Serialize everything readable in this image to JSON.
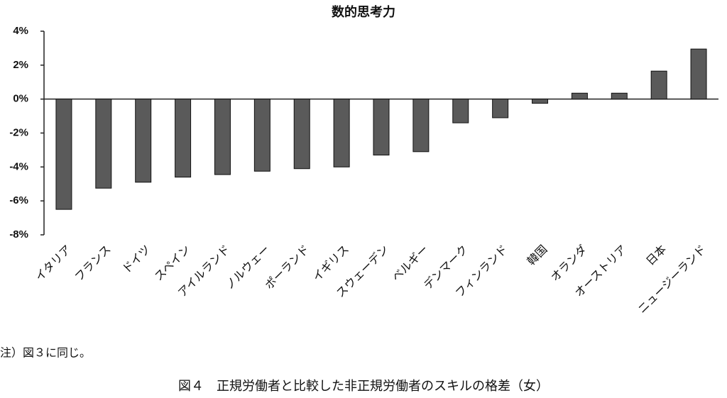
{
  "chart_data": {
    "type": "bar",
    "title": "数的思考力",
    "categories": [
      "イタリア",
      "フランス",
      "ドイツ",
      "スペイン",
      "アイルランド",
      "ノルウェー",
      "ポーランド",
      "イギリス",
      "スウェーデン",
      "ベルギー",
      "デンマーク",
      "フィンランド",
      "韓国",
      "オランダ",
      "オーストリア",
      "日本",
      "ニュージーランド"
    ],
    "values": [
      -6.5,
      -5.25,
      -4.9,
      -4.6,
      -4.45,
      -4.25,
      -4.1,
      -4.0,
      -3.3,
      -3.1,
      -1.4,
      -1.1,
      -0.25,
      0.35,
      0.35,
      1.65,
      2.95
    ],
    "color": "#5a5a5a",
    "ylim": [
      -8,
      4
    ],
    "yticks": [
      {
        "value": 4,
        "label": "4%"
      },
      {
        "value": 2,
        "label": "2%"
      },
      {
        "value": 0,
        "label": "0%"
      },
      {
        "value": -2,
        "label": "-2%"
      },
      {
        "value": -4,
        "label": "-4%"
      },
      {
        "value": -6,
        "label": "-6%"
      },
      {
        "value": -8,
        "label": "-8%"
      }
    ],
    "grid": false
  },
  "note": "注）図３に同じ。",
  "caption": "図４　正規労働者と比較した非正規労働者のスキルの格差（女）"
}
